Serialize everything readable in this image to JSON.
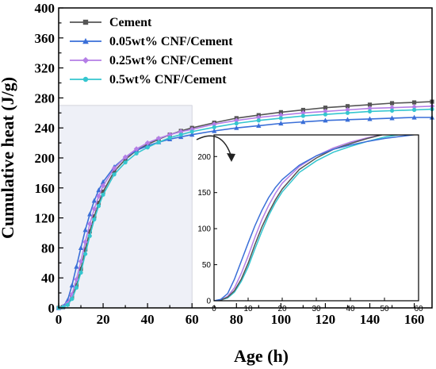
{
  "colors": {
    "cement": "#555555",
    "cnf005": "#3a6fd8",
    "cnf025": "#b47ee6",
    "cnf05": "#34c6cf",
    "shade": "#eef0f7",
    "arrow": "#222222"
  },
  "chart_data": {
    "type": "line",
    "xlabel": "Age (h)",
    "ylabel": "Cumulative heat (J/g)",
    "xlim": [
      0,
      168
    ],
    "ylim": [
      0,
      400
    ],
    "xticks": [
      0,
      20,
      40,
      60,
      80,
      100,
      120,
      140,
      160
    ],
    "yticks": [
      0,
      40,
      80,
      120,
      160,
      200,
      240,
      280,
      320,
      360,
      400
    ],
    "legend": "top-left",
    "series": [
      {
        "name": "Cement",
        "color_key": "cement",
        "marker": "square",
        "points": [
          [
            0,
            0
          ],
          [
            2,
            1
          ],
          [
            4,
            5
          ],
          [
            6,
            14
          ],
          [
            8,
            30
          ],
          [
            10,
            52
          ],
          [
            12,
            78
          ],
          [
            14,
            102
          ],
          [
            16,
            122
          ],
          [
            18,
            140
          ],
          [
            20,
            155
          ],
          [
            25,
            182
          ],
          [
            30,
            198
          ],
          [
            35,
            210
          ],
          [
            40,
            218
          ],
          [
            45,
            225
          ],
          [
            50,
            231
          ],
          [
            55,
            236
          ],
          [
            60,
            240
          ],
          [
            70,
            247
          ],
          [
            80,
            253
          ],
          [
            90,
            257
          ],
          [
            100,
            261
          ],
          [
            110,
            264
          ],
          [
            120,
            267
          ],
          [
            130,
            269
          ],
          [
            140,
            271
          ],
          [
            150,
            273
          ],
          [
            160,
            274
          ],
          [
            168,
            275
          ]
        ]
      },
      {
        "name": "0.05wt% CNF/Cement",
        "color_key": "cnf005",
        "marker": "triangle",
        "points": [
          [
            0,
            0
          ],
          [
            2,
            2
          ],
          [
            4,
            10
          ],
          [
            6,
            30
          ],
          [
            8,
            55
          ],
          [
            10,
            80
          ],
          [
            12,
            104
          ],
          [
            14,
            125
          ],
          [
            16,
            143
          ],
          [
            18,
            157
          ],
          [
            20,
            168
          ],
          [
            25,
            188
          ],
          [
            30,
            201
          ],
          [
            35,
            210
          ],
          [
            40,
            216
          ],
          [
            45,
            221
          ],
          [
            50,
            225
          ],
          [
            55,
            228
          ],
          [
            60,
            231
          ],
          [
            70,
            236
          ],
          [
            80,
            240
          ],
          [
            90,
            243
          ],
          [
            100,
            246
          ],
          [
            110,
            248
          ],
          [
            120,
            250
          ],
          [
            130,
            251
          ],
          [
            140,
            252
          ],
          [
            150,
            253
          ],
          [
            160,
            254
          ],
          [
            168,
            254
          ]
        ]
      },
      {
        "name": "0.25wt% CNF/Cement",
        "color_key": "cnf025",
        "marker": "diamond",
        "points": [
          [
            0,
            0
          ],
          [
            2,
            1
          ],
          [
            4,
            6
          ],
          [
            6,
            18
          ],
          [
            8,
            38
          ],
          [
            10,
            62
          ],
          [
            12,
            88
          ],
          [
            14,
            112
          ],
          [
            16,
            132
          ],
          [
            18,
            149
          ],
          [
            20,
            163
          ],
          [
            25,
            186
          ],
          [
            30,
            201
          ],
          [
            35,
            212
          ],
          [
            40,
            220
          ],
          [
            45,
            226
          ],
          [
            50,
            231
          ],
          [
            55,
            235
          ],
          [
            60,
            238
          ],
          [
            70,
            245
          ],
          [
            80,
            250
          ],
          [
            90,
            254
          ],
          [
            100,
            257
          ],
          [
            110,
            260
          ],
          [
            120,
            262
          ],
          [
            130,
            264
          ],
          [
            140,
            266
          ],
          [
            150,
            267
          ],
          [
            160,
            268
          ],
          [
            168,
            269
          ]
        ]
      },
      {
        "name": "0.5wt% CNF/Cement",
        "color_key": "cnf05",
        "marker": "circle",
        "points": [
          [
            0,
            0
          ],
          [
            2,
            1
          ],
          [
            4,
            4
          ],
          [
            6,
            12
          ],
          [
            8,
            27
          ],
          [
            10,
            47
          ],
          [
            12,
            72
          ],
          [
            14,
            96
          ],
          [
            16,
            118
          ],
          [
            18,
            136
          ],
          [
            20,
            151
          ],
          [
            25,
            178
          ],
          [
            30,
            194
          ],
          [
            35,
            206
          ],
          [
            40,
            214
          ],
          [
            45,
            221
          ],
          [
            50,
            227
          ],
          [
            55,
            231
          ],
          [
            60,
            235
          ],
          [
            70,
            241
          ],
          [
            80,
            246
          ],
          [
            90,
            250
          ],
          [
            100,
            253
          ],
          [
            110,
            256
          ],
          [
            120,
            258
          ],
          [
            130,
            260
          ],
          [
            140,
            262
          ],
          [
            150,
            263
          ],
          [
            160,
            264
          ],
          [
            168,
            265
          ]
        ]
      }
    ],
    "inset": {
      "xlim": [
        0,
        60
      ],
      "ylim": [
        0,
        230
      ],
      "xticks": [
        0,
        10,
        20,
        30,
        40,
        50,
        60
      ],
      "yticks": [
        0,
        50,
        100,
        150,
        200
      ]
    }
  }
}
